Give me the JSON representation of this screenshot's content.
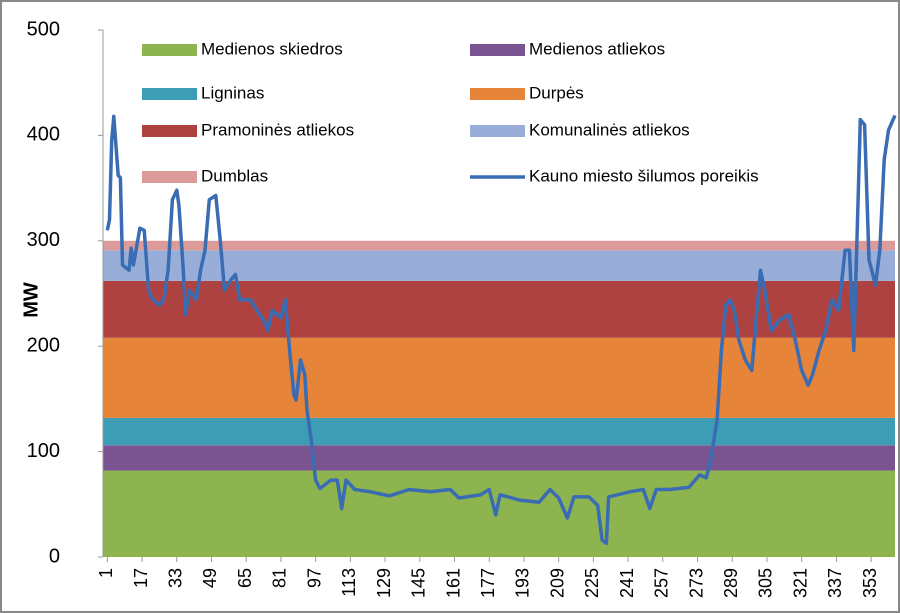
{
  "chart_data": {
    "type": "stacked_area",
    "y_label": "MW",
    "xlim": [
      -1,
      364
    ],
    "xticks": [
      1,
      17,
      33,
      49,
      65,
      81,
      97,
      113,
      129,
      145,
      161,
      177,
      193,
      209,
      225,
      241,
      257,
      273,
      289,
      305,
      321,
      337,
      353
    ],
    "ylim": [
      0,
      500
    ],
    "yticks": [
      0,
      100,
      200,
      300,
      400,
      500
    ],
    "series": [
      {
        "name": "Medienos skiedros",
        "color": "#8eb450",
        "value": 82
      },
      {
        "name": "Medienos atliekos",
        "color": "#7a5490",
        "value": 24
      },
      {
        "name": "Ligninas",
        "color": "#3d9db5",
        "value": 26
      },
      {
        "name": "Durpės",
        "color": "#e6843a",
        "value": 76
      },
      {
        "name": "Pramoninės atliekos",
        "color": "#ad4240",
        "value": 54
      },
      {
        "name": "Komunalinės atliekos",
        "color": "#98aed9",
        "value": 29
      },
      {
        "name": "Dumblas",
        "color": "#dc9a98",
        "value": 9
      },
      {
        "name": "Kauno miesto šilumos poreikis",
        "color": "#3a6cb3",
        "type": "line",
        "x": [
          1,
          2,
          3,
          4,
          6,
          7,
          8,
          11,
          12,
          13,
          16,
          18,
          20,
          22,
          25,
          27,
          29,
          31,
          33,
          34,
          36,
          37,
          39,
          42,
          44,
          46,
          48,
          51,
          53,
          55,
          58,
          60,
          62,
          67,
          70,
          73,
          75,
          77,
          81,
          83,
          85,
          87,
          88,
          90,
          92,
          93,
          95,
          97,
          99,
          104,
          107,
          109,
          111,
          115,
          122,
          131,
          140,
          150,
          159,
          163,
          173,
          177,
          180,
          182,
          191,
          200,
          205,
          209,
          213,
          216,
          223,
          227,
          229,
          231,
          232,
          242,
          248,
          251,
          254,
          260,
          269,
          274,
          277,
          279,
          282,
          284,
          286,
          288,
          290,
          292,
          295,
          298,
          300,
          302,
          304,
          307,
          311,
          315,
          318,
          321,
          324,
          326,
          329,
          332,
          335,
          338,
          341,
          343,
          345,
          347,
          348,
          350,
          352,
          355,
          357,
          359,
          361,
          364
        ],
        "values": [
          310,
          320,
          395,
          418,
          362,
          360,
          277,
          272,
          293,
          277,
          312,
          310,
          253,
          244,
          239,
          244,
          272,
          339,
          348,
          334,
          272,
          230,
          253,
          244,
          272,
          291,
          339,
          343,
          301,
          253,
          263,
          268,
          244,
          244,
          234,
          225,
          215,
          234,
          227,
          244,
          196,
          154,
          149,
          187,
          173,
          139,
          111,
          73,
          65,
          73,
          73,
          46,
          73,
          64,
          62,
          58,
          64,
          62,
          64,
          56,
          59,
          64,
          40,
          59,
          54,
          52,
          64,
          56,
          37,
          57,
          57,
          49,
          16,
          13,
          57,
          62,
          64,
          46,
          64,
          64,
          66,
          78,
          75,
          92,
          130,
          196,
          239,
          244,
          234,
          206,
          187,
          177,
          225,
          272,
          253,
          215,
          225,
          230,
          206,
          177,
          163,
          173,
          196,
          215,
          244,
          234,
          291,
          291,
          196,
          339,
          415,
          410,
          282,
          258,
          291,
          377,
          405,
          419
        ]
      }
    ]
  }
}
